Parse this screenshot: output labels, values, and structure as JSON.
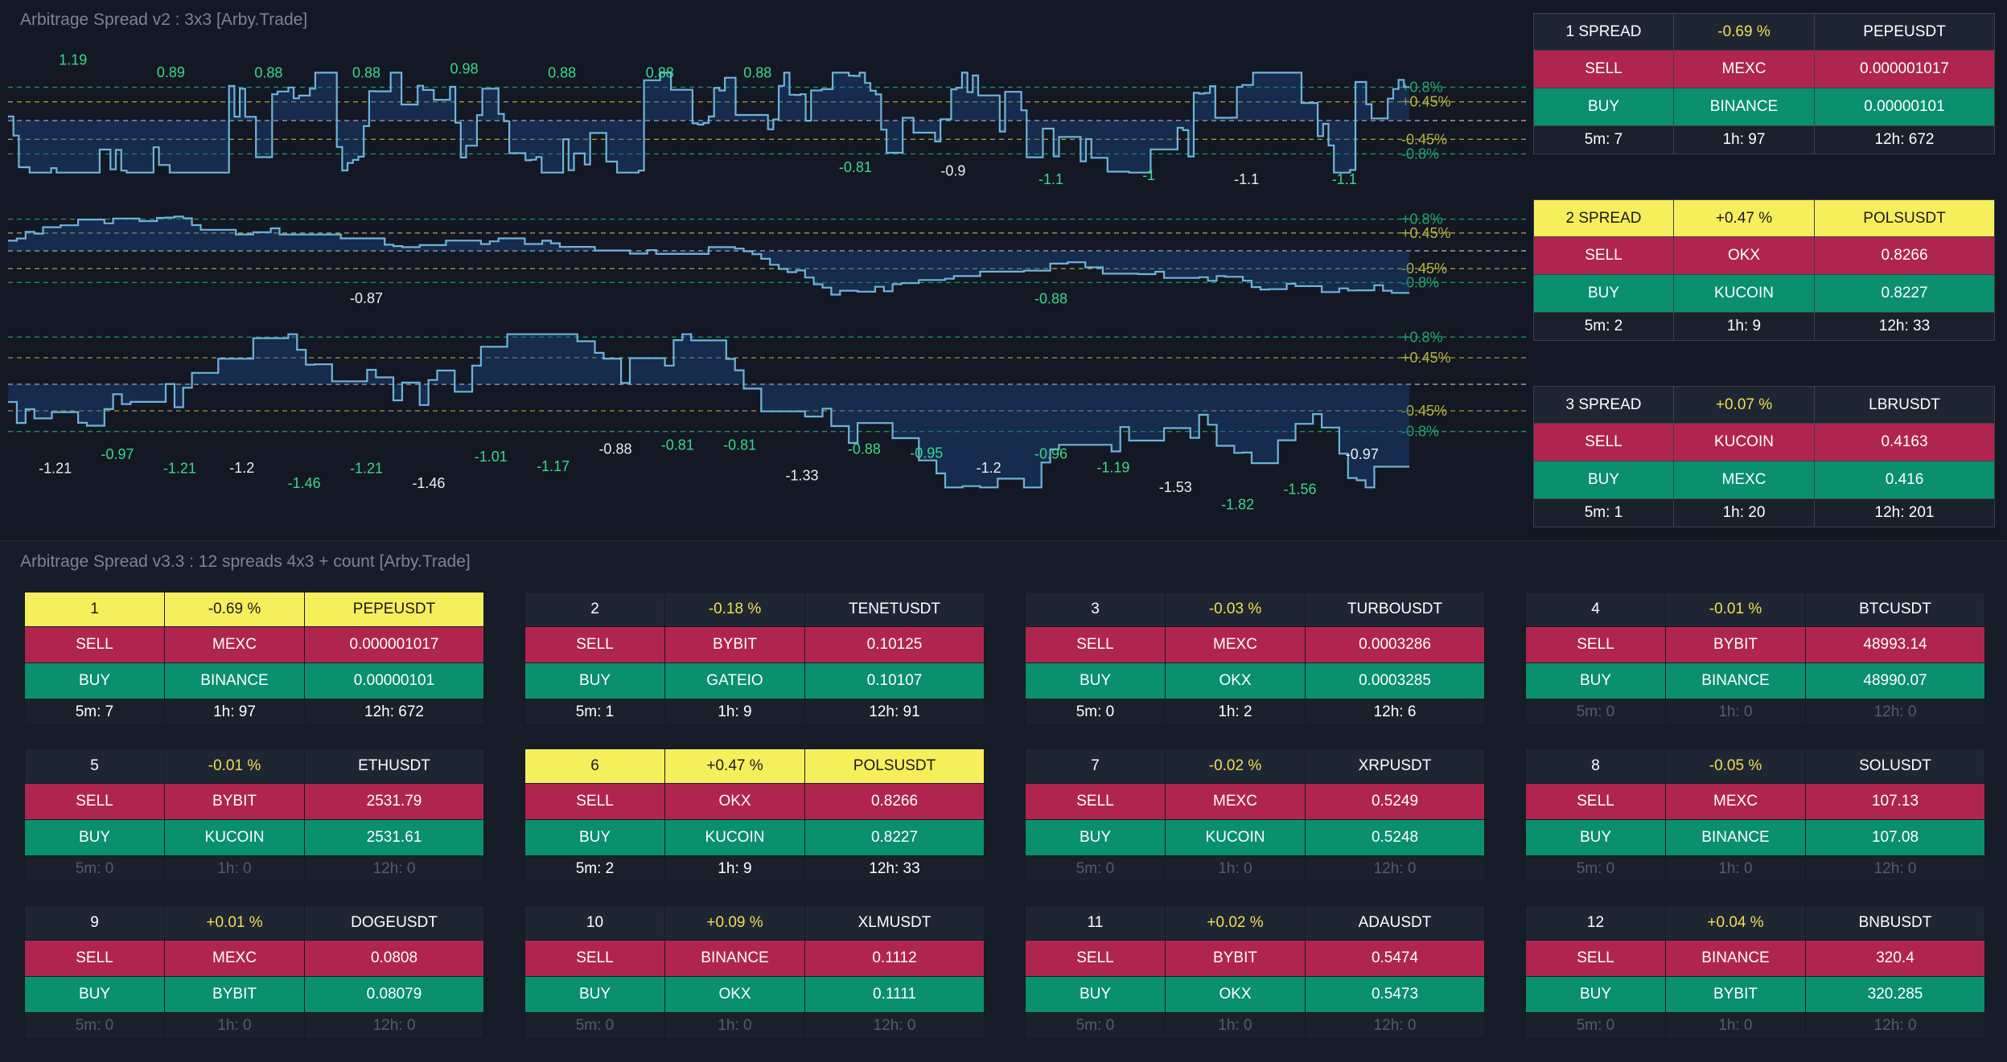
{
  "colors": {
    "sell": "#b02550",
    "buy": "#0a8f6f",
    "highlight": "#f6ef5c",
    "pct_text": "#f1de55",
    "line": "#6fb3d8",
    "level_green": "#1fa86b",
    "level_yellow": "#b9b33a",
    "zero_line": "#d6d6d6"
  },
  "top_panel": {
    "title": "Arbitrage Spread v2 : 3x3 [Arby.Trade]",
    "level_labels": {
      "plus_high": "+0.8%",
      "plus_low": "+0.45%",
      "minus_low": "-0.45%",
      "minus_high": "-0.8%"
    },
    "charts": [
      {
        "ylim": [
          -1.4,
          1.4
        ],
        "seed": 7,
        "volatility": "high",
        "annotations": [
          "1.19",
          "0.89",
          "0.88",
          "0.88",
          "0.98",
          "0.88",
          "0.88",
          "0.88",
          "-0.81",
          "-0.9",
          "-1.1",
          "-1",
          "-1.1",
          "-1.1"
        ]
      },
      {
        "ylim": [
          -1.4,
          1.4
        ],
        "seed": 3,
        "volatility": "low",
        "annotations": [
          "-0.87",
          "-0.88"
        ]
      },
      {
        "ylim": [
          -1.9,
          1.1
        ],
        "seed": 11,
        "volatility": "mid",
        "annotations": [
          "-1.21",
          "-0.97",
          "-1.21",
          "-1.2",
          "-1.46",
          "-1.21",
          "-1.46",
          "-1.01",
          "-1.17",
          "-0.88",
          "-0.81",
          "-0.81",
          "-1.33",
          "-0.88",
          "-0.95",
          "-1.2",
          "-0.96",
          "-1.19",
          "-1.53",
          "-1.82",
          "-1.56",
          "-0.97"
        ]
      }
    ],
    "spreads": [
      {
        "label": "1 SPREAD",
        "pct": "-0.69 %",
        "symbol": "PEPEUSDT",
        "highlight": false,
        "sell_label": "SELL",
        "sell_exchange": "MEXC",
        "sell_price": "0.000001017",
        "buy_label": "BUY",
        "buy_exchange": "BINANCE",
        "buy_price": "0.00000101",
        "c5m": "5m: 7",
        "c1h": "1h: 97",
        "c12h": "12h: 672"
      },
      {
        "label": "2 SPREAD",
        "pct": "+0.47 %",
        "symbol": "POLSUSDT",
        "highlight": true,
        "sell_label": "SELL",
        "sell_exchange": "OKX",
        "sell_price": "0.8266",
        "buy_label": "BUY",
        "buy_exchange": "KUCOIN",
        "buy_price": "0.8227",
        "c5m": "5m: 2",
        "c1h": "1h: 9",
        "c12h": "12h: 33"
      },
      {
        "label": "3 SPREAD",
        "pct": "+0.07 %",
        "symbol": "LBRUSDT",
        "highlight": false,
        "sell_label": "SELL",
        "sell_exchange": "KUCOIN",
        "sell_price": "0.4163",
        "buy_label": "BUY",
        "buy_exchange": "MEXC",
        "buy_price": "0.416",
        "c5m": "5m: 1",
        "c1h": "1h: 20",
        "c12h": "12h: 201"
      }
    ]
  },
  "bottom_panel": {
    "title": "Arbitrage Spread v3.3 : 12 spreads 4x3 + count [Arby.Trade]",
    "spreads": [
      {
        "label": "1",
        "pct": "-0.69 %",
        "symbol": "PEPEUSDT",
        "highlight": true,
        "sell_label": "SELL",
        "sell_exchange": "MEXC",
        "sell_price": "0.000001017",
        "buy_label": "BUY",
        "buy_exchange": "BINANCE",
        "buy_price": "0.00000101",
        "c5m": "5m: 7",
        "c1h": "1h: 97",
        "c12h": "12h: 672",
        "zero": false
      },
      {
        "label": "2",
        "pct": "-0.18 %",
        "symbol": "TENETUSDT",
        "highlight": false,
        "sell_label": "SELL",
        "sell_exchange": "BYBIT",
        "sell_price": "0.10125",
        "buy_label": "BUY",
        "buy_exchange": "GATEIO",
        "buy_price": "0.10107",
        "c5m": "5m: 1",
        "c1h": "1h: 9",
        "c12h": "12h: 91",
        "zero": false
      },
      {
        "label": "3",
        "pct": "-0.03 %",
        "symbol": "TURBOUSDT",
        "highlight": false,
        "sell_label": "SELL",
        "sell_exchange": "MEXC",
        "sell_price": "0.0003286",
        "buy_label": "BUY",
        "buy_exchange": "OKX",
        "buy_price": "0.0003285",
        "c5m": "5m: 0",
        "c1h": "1h: 2",
        "c12h": "12h: 6",
        "zero": false
      },
      {
        "label": "4",
        "pct": "-0.01 %",
        "symbol": "BTCUSDT",
        "highlight": false,
        "sell_label": "SELL",
        "sell_exchange": "BYBIT",
        "sell_price": "48993.14",
        "buy_label": "BUY",
        "buy_exchange": "BINANCE",
        "buy_price": "48990.07",
        "c5m": "5m: 0",
        "c1h": "1h: 0",
        "c12h": "12h: 0",
        "zero": true
      },
      {
        "label": "5",
        "pct": "-0.01 %",
        "symbol": "ETHUSDT",
        "highlight": false,
        "sell_label": "SELL",
        "sell_exchange": "BYBIT",
        "sell_price": "2531.79",
        "buy_label": "BUY",
        "buy_exchange": "KUCOIN",
        "buy_price": "2531.61",
        "c5m": "5m: 0",
        "c1h": "1h: 0",
        "c12h": "12h: 0",
        "zero": true
      },
      {
        "label": "6",
        "pct": "+0.47 %",
        "symbol": "POLSUSDT",
        "highlight": true,
        "sell_label": "SELL",
        "sell_exchange": "OKX",
        "sell_price": "0.8266",
        "buy_label": "BUY",
        "buy_exchange": "KUCOIN",
        "buy_price": "0.8227",
        "c5m": "5m: 2",
        "c1h": "1h: 9",
        "c12h": "12h: 33",
        "zero": false
      },
      {
        "label": "7",
        "pct": "-0.02 %",
        "symbol": "XRPUSDT",
        "highlight": false,
        "sell_label": "SELL",
        "sell_exchange": "MEXC",
        "sell_price": "0.5249",
        "buy_label": "BUY",
        "buy_exchange": "KUCOIN",
        "buy_price": "0.5248",
        "c5m": "5m: 0",
        "c1h": "1h: 0",
        "c12h": "12h: 0",
        "zero": true
      },
      {
        "label": "8",
        "pct": "-0.05 %",
        "symbol": "SOLUSDT",
        "highlight": false,
        "sell_label": "SELL",
        "sell_exchange": "MEXC",
        "sell_price": "107.13",
        "buy_label": "BUY",
        "buy_exchange": "BINANCE",
        "buy_price": "107.08",
        "c5m": "5m: 0",
        "c1h": "1h: 0",
        "c12h": "12h: 0",
        "zero": true
      },
      {
        "label": "9",
        "pct": "+0.01 %",
        "symbol": "DOGEUSDT",
        "highlight": false,
        "sell_label": "SELL",
        "sell_exchange": "MEXC",
        "sell_price": "0.0808",
        "buy_label": "BUY",
        "buy_exchange": "BYBIT",
        "buy_price": "0.08079",
        "c5m": "5m: 0",
        "c1h": "1h: 0",
        "c12h": "12h: 0",
        "zero": true
      },
      {
        "label": "10",
        "pct": "+0.09 %",
        "symbol": "XLMUSDT",
        "highlight": false,
        "sell_label": "SELL",
        "sell_exchange": "BINANCE",
        "sell_price": "0.1112",
        "buy_label": "BUY",
        "buy_exchange": "OKX",
        "buy_price": "0.1111",
        "c5m": "5m: 0",
        "c1h": "1h: 0",
        "c12h": "12h: 0",
        "zero": true
      },
      {
        "label": "11",
        "pct": "+0.02 %",
        "symbol": "ADAUSDT",
        "highlight": false,
        "sell_label": "SELL",
        "sell_exchange": "BYBIT",
        "sell_price": "0.5474",
        "buy_label": "BUY",
        "buy_exchange": "OKX",
        "buy_price": "0.5473",
        "c5m": "5m: 0",
        "c1h": "1h: 0",
        "c12h": "12h: 0",
        "zero": true
      },
      {
        "label": "12",
        "pct": "+0.04 %",
        "symbol": "BNBUSDT",
        "highlight": false,
        "sell_label": "SELL",
        "sell_exchange": "BINANCE",
        "sell_price": "320.4",
        "buy_label": "BUY",
        "buy_exchange": "BYBIT",
        "buy_price": "320.285",
        "c5m": "5m: 0",
        "c1h": "1h: 0",
        "c12h": "12h: 0",
        "zero": true
      }
    ]
  }
}
